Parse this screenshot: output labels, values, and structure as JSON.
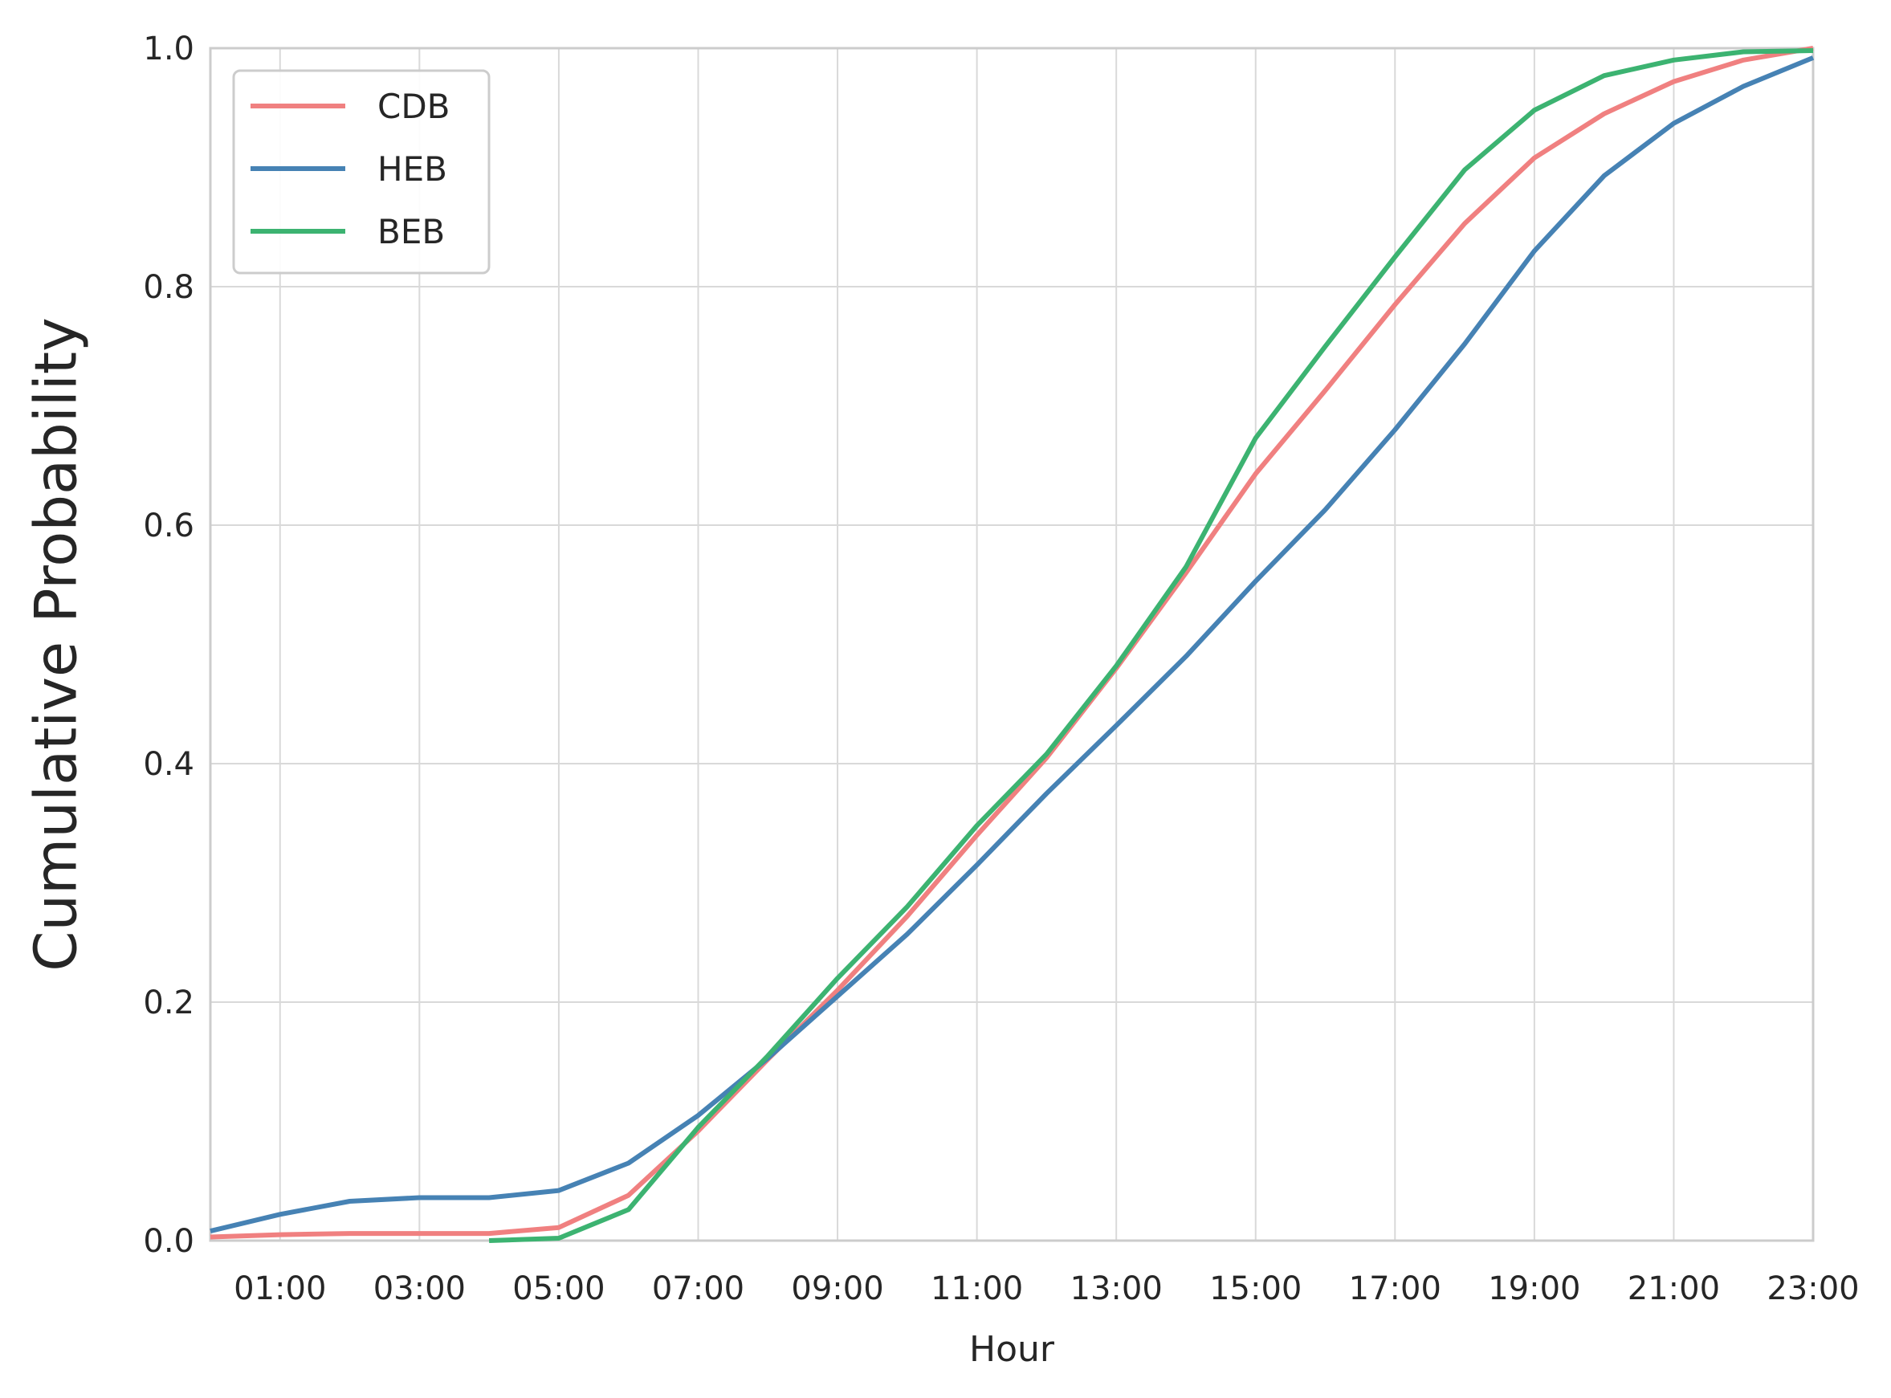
{
  "chart_data": {
    "type": "line",
    "title": "",
    "xlabel": "Hour",
    "ylabel": "Cumulative Probability",
    "x": [
      0,
      1,
      2,
      3,
      4,
      5,
      6,
      7,
      8,
      9,
      10,
      11,
      12,
      13,
      14,
      15,
      16,
      17,
      18,
      19,
      20,
      21,
      22,
      23
    ],
    "xlim": [
      0,
      23
    ],
    "ylim": [
      0,
      1.0
    ],
    "xticks": [
      1,
      3,
      5,
      7,
      9,
      11,
      13,
      15,
      17,
      19,
      21,
      23
    ],
    "xtick_labels": [
      "01:00",
      "03:00",
      "05:00",
      "07:00",
      "09:00",
      "11:00",
      "13:00",
      "15:00",
      "17:00",
      "19:00",
      "21:00",
      "23:00"
    ],
    "yticks": [
      0.0,
      0.2,
      0.4,
      0.6,
      0.8,
      1.0
    ],
    "ytick_labels": [
      "0.0",
      "0.2",
      "0.4",
      "0.6",
      "0.8",
      "1.0"
    ],
    "grid": true,
    "legend_position": "top-left",
    "series": [
      {
        "name": "CDB",
        "color": "#f08080",
        "values": [
          0.003,
          0.005,
          0.006,
          0.006,
          0.006,
          0.011,
          0.038,
          0.092,
          0.152,
          0.21,
          0.272,
          0.34,
          0.405,
          0.48,
          0.56,
          0.643,
          0.713,
          0.785,
          0.853,
          0.908,
          0.945,
          0.972,
          0.99,
          1.0
        ]
      },
      {
        "name": "HEB",
        "color": "#4682b4",
        "values": [
          0.008,
          0.022,
          0.033,
          0.036,
          0.036,
          0.042,
          0.065,
          0.105,
          0.153,
          0.205,
          0.257,
          0.315,
          0.375,
          0.432,
          0.49,
          0.553,
          0.613,
          0.68,
          0.752,
          0.83,
          0.893,
          0.937,
          0.968,
          0.992
        ]
      },
      {
        "name": "BEB",
        "color": "#3cb371",
        "values": [
          null,
          null,
          null,
          null,
          0.0,
          0.002,
          0.026,
          0.095,
          0.155,
          0.22,
          0.28,
          0.348,
          0.408,
          0.482,
          0.565,
          0.673,
          0.75,
          0.825,
          0.898,
          0.948,
          0.977,
          0.99,
          0.997,
          0.998
        ]
      }
    ]
  }
}
